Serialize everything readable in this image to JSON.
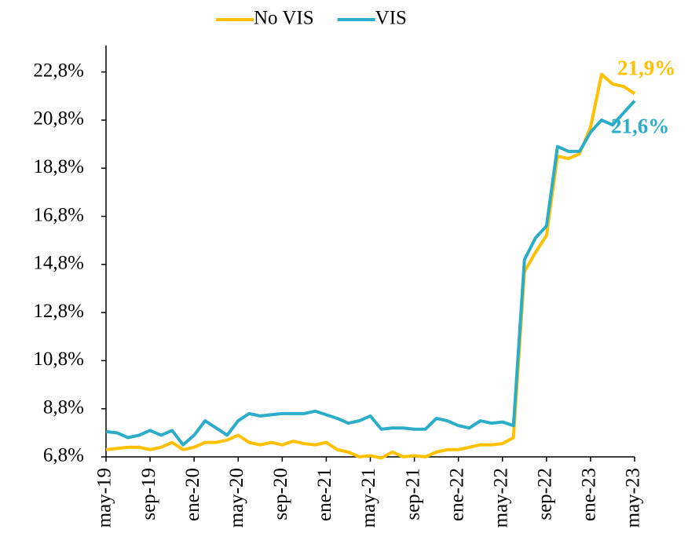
{
  "chart_data": {
    "type": "line",
    "categories": [
      "may-19",
      null,
      null,
      null,
      "sep-19",
      null,
      null,
      null,
      "ene-20",
      null,
      null,
      null,
      "may-20",
      null,
      null,
      null,
      "sep-20",
      null,
      null,
      null,
      "ene-21",
      null,
      null,
      null,
      "may-21",
      null,
      null,
      null,
      "sep-21",
      null,
      null,
      null,
      "ene-22",
      null,
      null,
      null,
      "may-22",
      null,
      null,
      null,
      "sep-22",
      null,
      null,
      null,
      "ene-23",
      null,
      null,
      null,
      "may-23"
    ],
    "series": [
      {
        "name": "No VIS",
        "color": "#FFC000",
        "values": [
          7.1,
          7.15,
          7.2,
          7.2,
          7.1,
          7.2,
          7.4,
          7.1,
          7.2,
          7.4,
          7.4,
          7.5,
          7.7,
          7.4,
          7.3,
          7.4,
          7.3,
          7.45,
          7.35,
          7.3,
          7.4,
          7.1,
          7.0,
          6.8,
          6.85,
          6.75,
          7.0,
          6.8,
          6.85,
          6.8,
          7.0,
          7.1,
          7.1,
          7.2,
          7.3,
          7.3,
          7.35,
          7.6,
          14.5,
          15.3,
          16.0,
          19.3,
          19.2,
          19.4,
          20.5,
          22.7,
          22.3,
          22.2,
          21.9
        ],
        "value_labels": [
          null,
          null,
          null,
          null,
          null,
          null,
          null,
          null,
          null,
          null,
          null,
          null,
          null,
          null,
          null,
          null,
          null,
          null,
          null,
          null,
          null,
          null,
          null,
          null,
          null,
          null,
          null,
          null,
          null,
          null,
          null,
          null,
          null,
          null,
          null,
          null,
          null,
          null,
          null,
          null,
          null,
          null,
          null,
          null,
          null,
          null,
          null,
          null,
          "21,9%"
        ]
      },
      {
        "name": "VIS",
        "color": "#2BACC8",
        "values": [
          7.85,
          7.8,
          7.6,
          7.7,
          7.9,
          7.7,
          7.9,
          7.3,
          7.7,
          8.3,
          8.0,
          7.7,
          8.3,
          8.6,
          8.5,
          8.55,
          8.6,
          8.6,
          8.6,
          8.7,
          8.55,
          8.4,
          8.2,
          8.3,
          8.5,
          7.95,
          8.0,
          8.0,
          7.95,
          7.95,
          8.4,
          8.3,
          8.1,
          8.0,
          8.3,
          8.2,
          8.25,
          8.1,
          15.0,
          15.9,
          16.4,
          19.7,
          19.5,
          19.5,
          20.3,
          20.8,
          20.6,
          21.1,
          21.6
        ],
        "value_labels": [
          null,
          null,
          null,
          null,
          null,
          null,
          null,
          null,
          null,
          null,
          null,
          null,
          null,
          null,
          null,
          null,
          null,
          null,
          null,
          null,
          null,
          null,
          null,
          null,
          null,
          null,
          null,
          null,
          null,
          null,
          null,
          null,
          null,
          null,
          null,
          null,
          null,
          null,
          null,
          null,
          null,
          null,
          null,
          null,
          null,
          null,
          null,
          null,
          "21,6%"
        ]
      }
    ],
    "ylim": [
      6.8,
      23.9
    ],
    "yticks": [
      {
        "value": 6.8,
        "label": "6,8%"
      },
      {
        "value": 8.8,
        "label": "8,8%"
      },
      {
        "value": 10.8,
        "label": "10,8%"
      },
      {
        "value": 12.8,
        "label": "12,8%"
      },
      {
        "value": 14.8,
        "label": "14,8%"
      },
      {
        "value": 16.8,
        "label": "16,8%"
      },
      {
        "value": 18.8,
        "label": "18,8%"
      },
      {
        "value": 20.8,
        "label": "20,8%"
      },
      {
        "value": 22.8,
        "label": "22,8%"
      }
    ],
    "grid": false,
    "legend": "top"
  }
}
